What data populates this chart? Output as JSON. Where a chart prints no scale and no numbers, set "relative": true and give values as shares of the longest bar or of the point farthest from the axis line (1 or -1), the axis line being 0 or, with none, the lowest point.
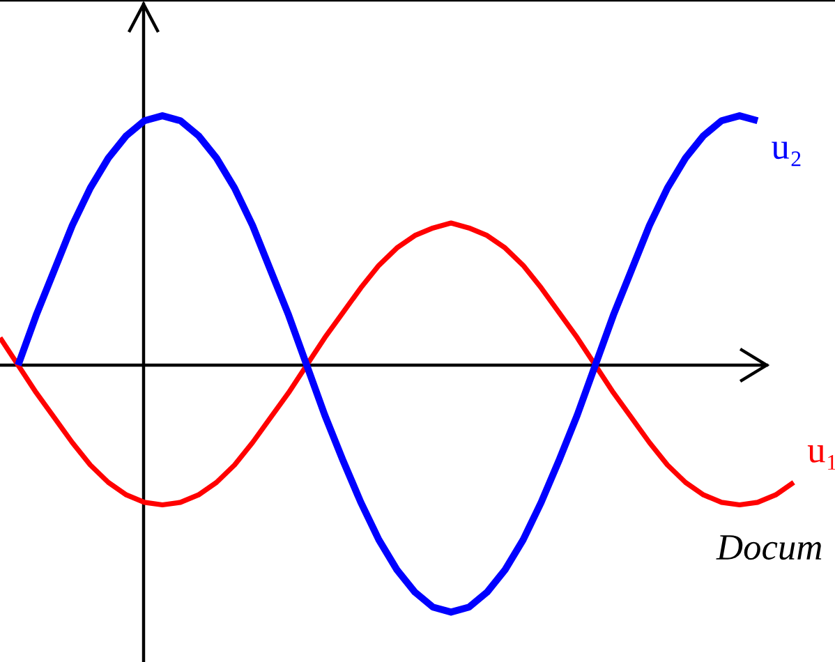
{
  "chart_data": {
    "type": "line",
    "relative": true,
    "categories": [
      null,
      null,
      null,
      null,
      null,
      null,
      null,
      null,
      null,
      null,
      null,
      null,
      null,
      null,
      null,
      null,
      null,
      null,
      null,
      null,
      null,
      null,
      null,
      null,
      null,
      null,
      null,
      null,
      null,
      null,
      null,
      null,
      null,
      null,
      null,
      null,
      null,
      null,
      null,
      null,
      null,
      null,
      null,
      null,
      null
    ],
    "series": [
      {
        "name": "u₁",
        "color": "#ff0000",
        "values": [
          0.11,
          0,
          -0.11,
          -0.21,
          -0.31,
          -0.4,
          -0.47,
          -0.52,
          -0.55,
          -0.56,
          -0.55,
          -0.52,
          -0.47,
          -0.4,
          -0.31,
          -0.21,
          -0.11,
          0,
          0.11,
          0.21,
          0.31,
          0.4,
          0.47,
          0.52,
          0.55,
          0.57,
          0.55,
          0.52,
          0.47,
          0.4,
          0.31,
          0.21,
          0.11,
          0,
          -0.11,
          -0.21,
          -0.31,
          -0.4,
          -0.47,
          -0.52,
          -0.55,
          -0.56,
          -0.55,
          -0.52,
          -0.47
        ]
      },
      {
        "name": "u₂",
        "color": "#0000ff",
        "values": [
          null,
          0,
          0.2,
          0.38,
          0.56,
          0.71,
          0.83,
          0.92,
          0.98,
          1,
          0.98,
          0.92,
          0.83,
          0.71,
          0.56,
          0.38,
          0.2,
          0,
          -0.2,
          -0.38,
          -0.55,
          -0.7,
          -0.82,
          -0.91,
          -0.97,
          -0.99,
          -0.97,
          -0.91,
          -0.82,
          -0.7,
          -0.55,
          -0.38,
          -0.2,
          0,
          0.2,
          0.38,
          0.56,
          0.71,
          0.83,
          0.92,
          0.98,
          1,
          0.98,
          null,
          null
        ]
      }
    ],
    "annotations": [
      "Docum"
    ]
  }
}
